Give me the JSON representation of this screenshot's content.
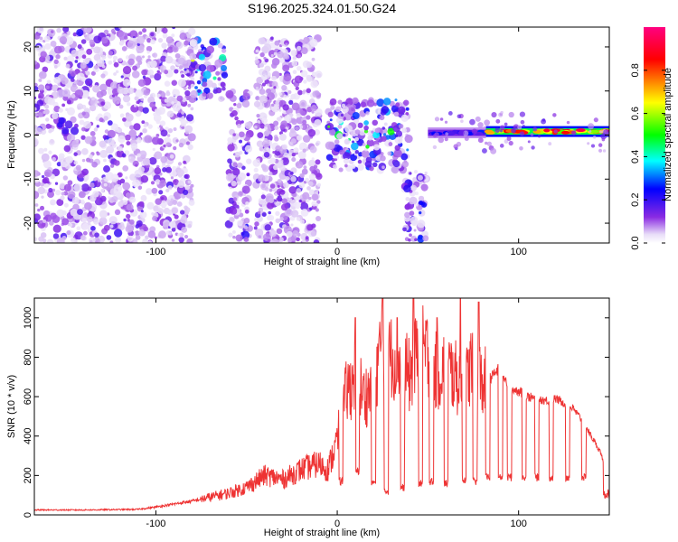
{
  "title": "S196.2025.324.01.50.G24",
  "chart_data": [
    {
      "type": "heatmap",
      "xlabel": "Height of straight line (km)",
      "ylabel": "Frequency (Hz)",
      "xlim": [
        -167,
        150
      ],
      "ylim": [
        -24.5,
        24.5
      ],
      "xticks": [
        -100,
        0,
        100
      ],
      "xtick_labels": [
        "-100",
        "0",
        "100"
      ],
      "yticks": [
        -20,
        -10,
        0,
        10,
        20
      ],
      "ytick_labels": [
        "-20",
        "-10",
        "0",
        "10",
        "20"
      ],
      "colorbar": {
        "label": "Normalized spectral amplitude",
        "range": [
          0,
          1
        ],
        "ticks": [
          0,
          0.2,
          0.4,
          0.6,
          0.8
        ],
        "tick_labels": [
          "0.0",
          "0.2",
          "0.4",
          "0.6",
          "0.8"
        ],
        "colors": [
          "#ffffff",
          "#8a2be2",
          "#0000ff",
          "#00ffff",
          "#00ff00",
          "#ffff00",
          "#ff0000",
          "#ff00ff"
        ]
      },
      "features": [
        {
          "kind": "scatter_noise",
          "x_range": [
            -167,
            -80
          ],
          "f_range": [
            -24.5,
            24.5
          ],
          "amplitude": 0.12
        },
        {
          "kind": "band",
          "x_range": [
            -80,
            -62
          ],
          "f_range": [
            8,
            22
          ],
          "amplitude": 0.25
        },
        {
          "kind": "band",
          "x_range": [
            -60,
            -48
          ],
          "f_range": [
            -24.5,
            10
          ],
          "amplitude": 0.15
        },
        {
          "kind": "band",
          "x_range": [
            -45,
            -10
          ],
          "f_range": [
            -24.5,
            22
          ],
          "amplitude": 0.1
        },
        {
          "kind": "band",
          "x_range": [
            -5,
            40
          ],
          "f_range": [
            -8,
            8
          ],
          "amplitude": 0.22
        },
        {
          "kind": "band",
          "x_range": [
            37,
            50
          ],
          "f_range": [
            -24,
            -8
          ],
          "amplitude": 0.2
        },
        {
          "kind": "tone",
          "x_range": [
            50,
            82
          ],
          "f_center": 0.5,
          "amplitude": 0.25
        },
        {
          "kind": "tone",
          "x_range": [
            82,
            150
          ],
          "f_center": 0.8,
          "amplitude": 0.85
        }
      ]
    },
    {
      "type": "line",
      "xlabel": "Height of straight line (km)",
      "ylabel": "SNR (10 * v/v)",
      "xlim": [
        -167,
        150
      ],
      "ylim": [
        0,
        1100
      ],
      "xticks": [
        -100,
        0,
        100
      ],
      "xtick_labels": [
        "-100",
        "0",
        "100"
      ],
      "yticks": [
        0,
        200,
        400,
        600,
        800,
        1000
      ],
      "ytick_labels": [
        "0",
        "200",
        "400",
        "600",
        "800",
        "1000"
      ],
      "line_color": "#ee3333",
      "series": [
        {
          "name": "SNR",
          "x": [
            -167,
            -140,
            -110,
            -100,
            -90,
            -80,
            -70,
            -60,
            -50,
            -45,
            -40,
            -30,
            -20,
            -10,
            -5,
            0,
            5,
            10,
            15,
            20,
            25,
            30,
            35,
            40,
            45,
            50,
            55,
            60,
            65,
            70,
            75,
            80,
            85,
            90,
            95,
            100,
            105,
            110,
            115,
            120,
            125,
            130,
            135,
            140,
            145,
            148,
            150
          ],
          "y": [
            25,
            25,
            28,
            40,
            55,
            70,
            90,
            110,
            140,
            170,
            200,
            180,
            230,
            260,
            230,
            380,
            620,
            700,
            600,
            650,
            900,
            800,
            780,
            700,
            850,
            820,
            720,
            760,
            700,
            640,
            800,
            660,
            700,
            750,
            640,
            630,
            600,
            590,
            580,
            590,
            570,
            540,
            480,
            400,
            320,
            240,
            80
          ],
          "spikes": [
            [
              10,
              1000
            ],
            [
              25,
              1100
            ],
            [
              33,
              1000
            ],
            [
              42,
              1100
            ],
            [
              55,
              1000
            ],
            [
              68,
              1100
            ],
            [
              78,
              1080
            ]
          ],
          "dropouts": [
            [
              2,
              150
            ],
            [
              11,
              200
            ],
            [
              20,
              150
            ],
            [
              27,
              100
            ],
            [
              36,
              120
            ],
            [
              46,
              140
            ],
            [
              52,
              150
            ],
            [
              60,
              140
            ],
            [
              70,
              160
            ],
            [
              76,
              150
            ],
            [
              83,
              170
            ],
            [
              90,
              170
            ],
            [
              95,
              170
            ],
            [
              103,
              170
            ],
            [
              110,
              170
            ],
            [
              118,
              170
            ],
            [
              127,
              170
            ],
            [
              136,
              170
            ],
            [
              148,
              80
            ]
          ]
        }
      ]
    }
  ]
}
